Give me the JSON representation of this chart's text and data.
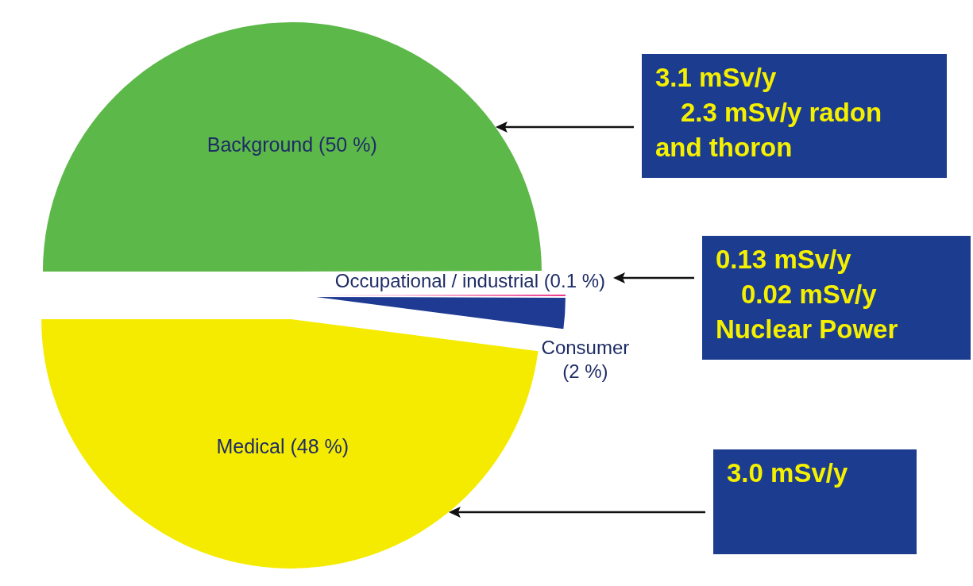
{
  "chart_data": {
    "type": "pie",
    "categories": [
      "Background",
      "Occupational / industrial",
      "Consumer",
      "Medical"
    ],
    "values": [
      50,
      0.1,
      2,
      48
    ],
    "colors": [
      "#5cb848",
      "#ee3a8c",
      "#1f3a93",
      "#f5eb00"
    ],
    "value_labels": [
      "(50 %)",
      "(0.1 %)",
      "(2 %)",
      "(48 %)"
    ],
    "annotations": [
      "3.1 mSv/y\n2.3 mSv/y radon\nand thoron",
      "0.13 mSv/y\n0.02 mSv/y\nNuclear Power",
      "3.0 mSv/y"
    ]
  }
}
